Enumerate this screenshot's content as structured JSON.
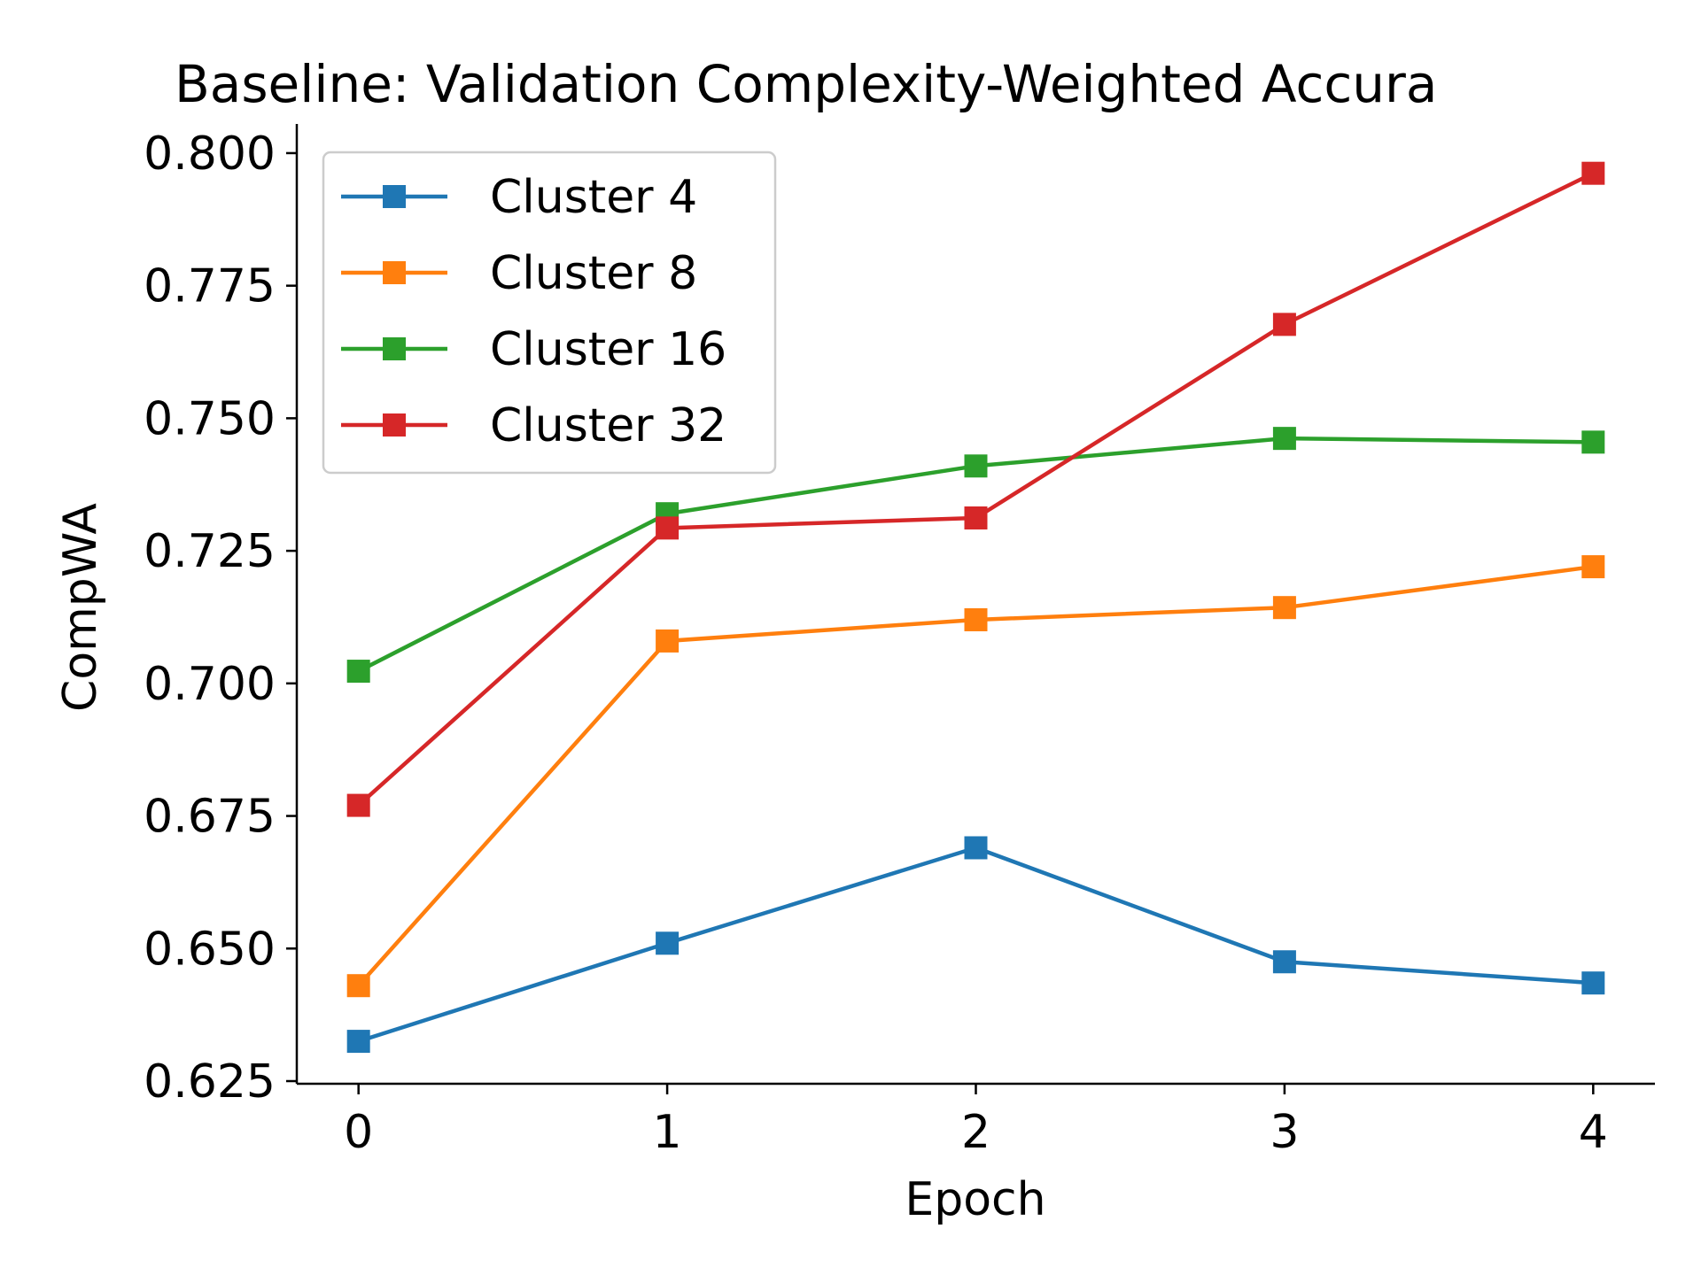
{
  "chart_data": {
    "type": "line",
    "title": "Baseline: Validation Complexity-Weighted Accura",
    "xlabel": "Epoch",
    "ylabel": "CompWA",
    "x": [
      0,
      1,
      2,
      3,
      4
    ],
    "xticks": [
      "0",
      "1",
      "2",
      "3",
      "4"
    ],
    "yticks": [
      "0.625",
      "0.650",
      "0.675",
      "0.700",
      "0.725",
      "0.750",
      "0.775",
      "0.800"
    ],
    "ytick_values": [
      0.625,
      0.65,
      0.675,
      0.7,
      0.725,
      0.75,
      0.775,
      0.8
    ],
    "xlim": [
      -0.2,
      4.2
    ],
    "ylim": [
      0.6245,
      0.8055
    ],
    "grid": false,
    "legend_position": "top-left",
    "marker": "square",
    "series": [
      {
        "name": "Cluster 4",
        "color": "#1f77b4",
        "values": [
          0.6325,
          0.651,
          0.669,
          0.6475,
          0.6435
        ]
      },
      {
        "name": "Cluster 8",
        "color": "#ff7f0e",
        "values": [
          0.643,
          0.708,
          0.712,
          0.7143,
          0.722
        ]
      },
      {
        "name": "Cluster 16",
        "color": "#2ca02c",
        "values": [
          0.7023,
          0.732,
          0.741,
          0.7462,
          0.7455
        ]
      },
      {
        "name": "Cluster 32",
        "color": "#d62728",
        "values": [
          0.677,
          0.7293,
          0.7312,
          0.7677,
          0.7962
        ]
      }
    ]
  }
}
